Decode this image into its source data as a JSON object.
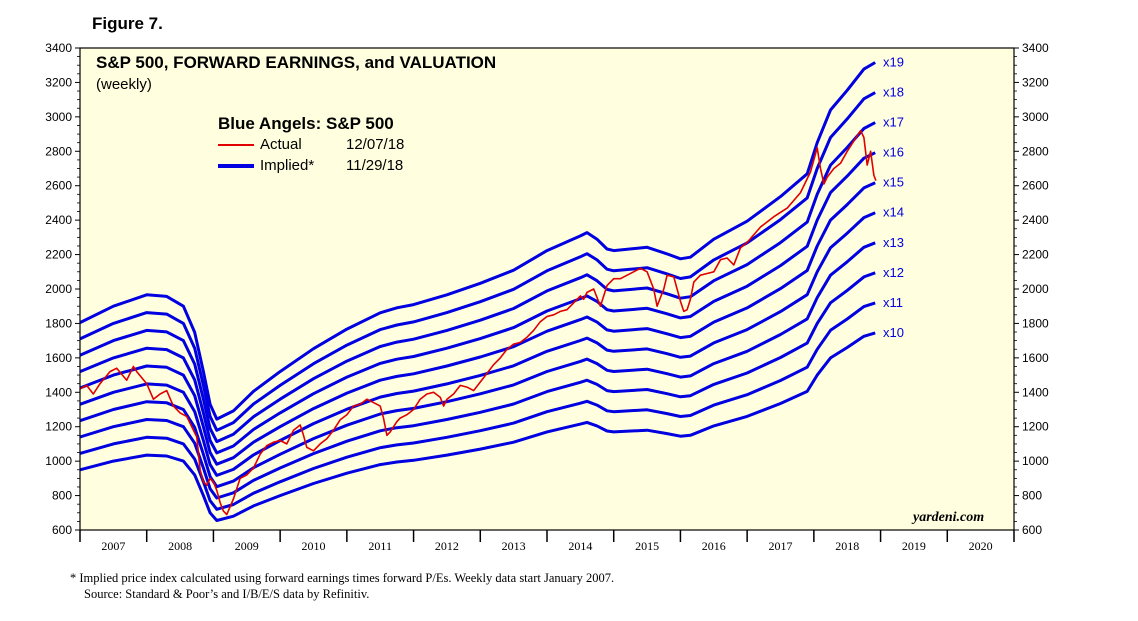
{
  "figure_label": "Figure 7.",
  "footnotes": {
    "note": "*   Implied price index calculated using forward earnings times forward P/Es. Weekly data start January 2007.",
    "source": "Source: Standard & Poor’s and I/B/E/S data by Refinitiv."
  },
  "watermark": "yardeni.com",
  "colors": {
    "plot_background": "#ffffe0",
    "actual": "#e00000",
    "implied": "#0000e0",
    "axis": "#000000"
  },
  "chart_data": {
    "type": "line",
    "title": "S&P 500, FORWARD EARNINGS, and VALUATION",
    "subtitle": "(weekly)",
    "legend": {
      "title": "Blue Angels: S&P 500",
      "entries": [
        {
          "label": "Actual",
          "date": "12/07/18",
          "color": "#e00000"
        },
        {
          "label": "Implied*",
          "date": "11/29/18",
          "color": "#0000e0"
        }
      ],
      "placement": "top-left"
    },
    "xlim": [
      2007,
      2021
    ],
    "ylim": [
      600,
      3400
    ],
    "x_tick_labels": [
      "2007",
      "2008",
      "2009",
      "2010",
      "2011",
      "2012",
      "2013",
      "2014",
      "2015",
      "2016",
      "2017",
      "2018",
      "2019",
      "2020"
    ],
    "y_ticks": [
      600,
      800,
      1000,
      1200,
      1400,
      1600,
      1800,
      2000,
      2200,
      2400,
      2600,
      2800,
      3000,
      3200,
      3400
    ],
    "y_axis_both_sides": true,
    "grid": false,
    "forward_earnings_x": [
      2007.0,
      2007.5,
      2008.0,
      2008.3,
      2008.55,
      2008.72,
      2008.85,
      2008.95,
      2009.05,
      2009.3,
      2009.6,
      2010.0,
      2010.5,
      2011.0,
      2011.5,
      2011.75,
      2012.0,
      2012.5,
      2013.0,
      2013.5,
      2014.0,
      2014.5,
      2014.6,
      2014.75,
      2014.9,
      2015.0,
      2015.5,
      2015.8,
      2016.0,
      2016.15,
      2016.5,
      2017.0,
      2017.5,
      2017.9,
      2018.05,
      2018.25,
      2018.5,
      2018.75,
      2018.92
    ],
    "forward_earnings_y": [
      95.0,
      100.0,
      103.5,
      103.0,
      100.0,
      92.0,
      80.0,
      70.0,
      65.5,
      68.0,
      74.0,
      80.0,
      87.0,
      93.0,
      98.0,
      99.5,
      100.5,
      103.5,
      107.0,
      111.0,
      117.0,
      121.5,
      122.5,
      120.5,
      117.5,
      117.0,
      118.0,
      116.0,
      114.5,
      115.0,
      120.5,
      126.0,
      133.5,
      140.5,
      150.0,
      160.0,
      166.0,
      172.5,
      174.5
    ],
    "multiples": [
      10,
      11,
      12,
      13,
      14,
      15,
      16,
      17,
      18,
      19
    ],
    "multiple_labels": [
      "x10",
      "x11",
      "x12",
      "x13",
      "x14",
      "x15",
      "x16",
      "x17",
      "x18",
      "x19"
    ],
    "series": [
      {
        "name": "Actual",
        "x": [
          2007.0,
          2007.1,
          2007.2,
          2007.3,
          2007.45,
          2007.55,
          2007.7,
          2007.8,
          2007.85,
          2008.0,
          2008.1,
          2008.2,
          2008.3,
          2008.4,
          2008.5,
          2008.6,
          2008.7,
          2008.75,
          2008.8,
          2008.85,
          2008.9,
          2008.95,
          2009.0,
          2009.05,
          2009.1,
          2009.15,
          2009.2,
          2009.3,
          2009.4,
          2009.5,
          2009.6,
          2009.7,
          2009.8,
          2009.9,
          2010.0,
          2010.1,
          2010.2,
          2010.3,
          2010.35,
          2010.4,
          2010.5,
          2010.6,
          2010.7,
          2010.8,
          2010.9,
          2011.0,
          2011.1,
          2011.2,
          2011.3,
          2011.4,
          2011.5,
          2011.55,
          2011.6,
          2011.65,
          2011.7,
          2011.75,
          2011.8,
          2011.9,
          2012.0,
          2012.1,
          2012.2,
          2012.3,
          2012.4,
          2012.45,
          2012.5,
          2012.6,
          2012.7,
          2012.8,
          2012.9,
          2013.0,
          2013.1,
          2013.2,
          2013.3,
          2013.4,
          2013.5,
          2013.6,
          2013.7,
          2013.8,
          2013.9,
          2014.0,
          2014.1,
          2014.2,
          2014.3,
          2014.4,
          2014.5,
          2014.55,
          2014.6,
          2014.7,
          2014.8,
          2014.9,
          2015.0,
          2015.1,
          2015.2,
          2015.3,
          2015.4,
          2015.5,
          2015.6,
          2015.65,
          2015.7,
          2015.75,
          2015.8,
          2015.9,
          2016.0,
          2016.05,
          2016.1,
          2016.15,
          2016.2,
          2016.3,
          2016.4,
          2016.5,
          2016.6,
          2016.7,
          2016.8,
          2016.9,
          2017.0,
          2017.2,
          2017.4,
          2017.6,
          2017.8,
          2017.95,
          2018.05,
          2018.1,
          2018.15,
          2018.2,
          2018.3,
          2018.4,
          2018.5,
          2018.6,
          2018.7,
          2018.75,
          2018.8,
          2018.85,
          2018.9,
          2018.93
        ],
        "y": [
          1420,
          1440,
          1390,
          1450,
          1520,
          1540,
          1470,
          1550,
          1520,
          1450,
          1360,
          1390,
          1410,
          1320,
          1280,
          1260,
          1180,
          1140,
          950,
          880,
          860,
          900,
          880,
          830,
          760,
          710,
          690,
          780,
          900,
          920,
          960,
          1040,
          1090,
          1110,
          1120,
          1100,
          1180,
          1210,
          1150,
          1080,
          1060,
          1100,
          1130,
          1180,
          1240,
          1270,
          1320,
          1330,
          1360,
          1340,
          1320,
          1250,
          1150,
          1170,
          1200,
          1230,
          1250,
          1270,
          1300,
          1360,
          1390,
          1400,
          1370,
          1320,
          1360,
          1390,
          1440,
          1430,
          1410,
          1460,
          1510,
          1560,
          1600,
          1650,
          1680,
          1690,
          1720,
          1760,
          1810,
          1840,
          1850,
          1870,
          1880,
          1920,
          1960,
          1940,
          1980,
          2000,
          1900,
          2020,
          2060,
          2060,
          2080,
          2100,
          2120,
          2100,
          2000,
          1900,
          1950,
          2000,
          2080,
          2070,
          1930,
          1870,
          1880,
          1940,
          2040,
          2080,
          2090,
          2100,
          2170,
          2180,
          2140,
          2240,
          2270,
          2360,
          2420,
          2470,
          2560,
          2680,
          2820,
          2700,
          2610,
          2650,
          2700,
          2730,
          2800,
          2860,
          2920,
          2880,
          2720,
          2800,
          2660,
          2630
        ]
      },
      {
        "name": "Implied*",
        "expression": "forward_earnings x multiple"
      }
    ],
    "annotations": [
      "x19",
      "x18",
      "x17",
      "x16",
      "x15",
      "x14",
      "x13",
      "x12",
      "x11",
      "x10"
    ]
  }
}
